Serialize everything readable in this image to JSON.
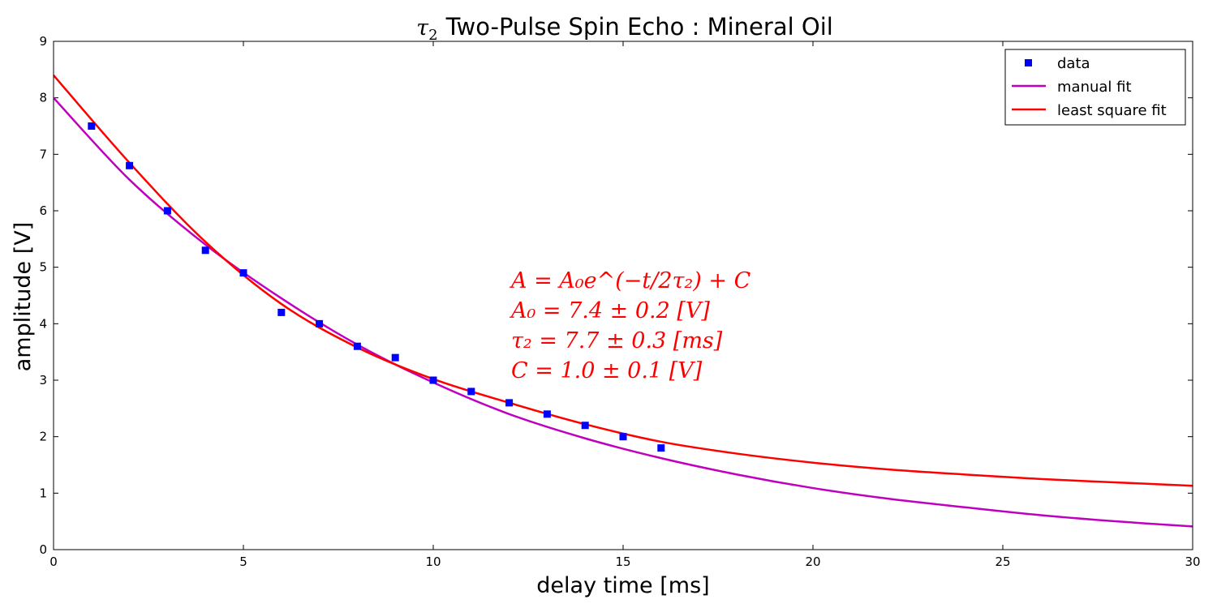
{
  "chart_data": {
    "type": "scatter",
    "title": {
      "symbol": "τ",
      "symbol_sub": "2",
      "text": "Two-Pulse Spin Echo : Mineral Oil"
    },
    "xlabel": "delay time [ms]",
    "ylabel": "amplitude [V]",
    "xlim": [
      0,
      30
    ],
    "ylim": [
      0,
      9
    ],
    "xticks": [
      0,
      5,
      10,
      15,
      20,
      25,
      30
    ],
    "yticks": [
      0,
      1,
      2,
      3,
      4,
      5,
      6,
      7,
      8,
      9
    ],
    "legend_position": "top-right",
    "series": [
      {
        "name": "data",
        "kind": "markers",
        "color": "#0000ff",
        "x": [
          1,
          2,
          3,
          4,
          5,
          6,
          7,
          8,
          9,
          10,
          11,
          12,
          13,
          14,
          15,
          16
        ],
        "y": [
          7.5,
          6.8,
          6.0,
          5.3,
          4.9,
          4.2,
          4.0,
          3.6,
          3.4,
          3.0,
          2.8,
          2.6,
          2.4,
          2.2,
          2.0,
          1.8
        ]
      },
      {
        "name": "manual fit",
        "kind": "line",
        "color": "#bf00bf",
        "x": [
          0,
          2,
          4,
          6,
          8,
          10,
          12,
          14,
          16,
          18,
          20,
          22,
          24,
          26,
          28,
          30
        ],
        "y": [
          8.0,
          6.55,
          5.4,
          4.45,
          3.63,
          2.96,
          2.4,
          1.97,
          1.62,
          1.33,
          1.09,
          0.9,
          0.75,
          0.61,
          0.5,
          0.41
        ]
      },
      {
        "name": "least square fit",
        "kind": "line",
        "color": "#ff0000",
        "x": [
          0,
          2,
          4,
          6,
          8,
          10,
          12,
          14,
          16,
          18,
          20,
          22,
          24,
          26,
          28,
          30
        ],
        "y": [
          8.4,
          6.85,
          5.45,
          4.35,
          3.58,
          3.02,
          2.6,
          2.22,
          1.91,
          1.7,
          1.54,
          1.42,
          1.33,
          1.25,
          1.19,
          1.13
        ]
      }
    ],
    "annotations": [
      "A = A₀e^(−t/2τ₂) + C",
      "A₀ = 7.4 ± 0.2 [V]",
      "τ₂ = 7.7 ± 0.3 [ms]",
      "C = 1.0 ± 0.1 [V]"
    ]
  }
}
